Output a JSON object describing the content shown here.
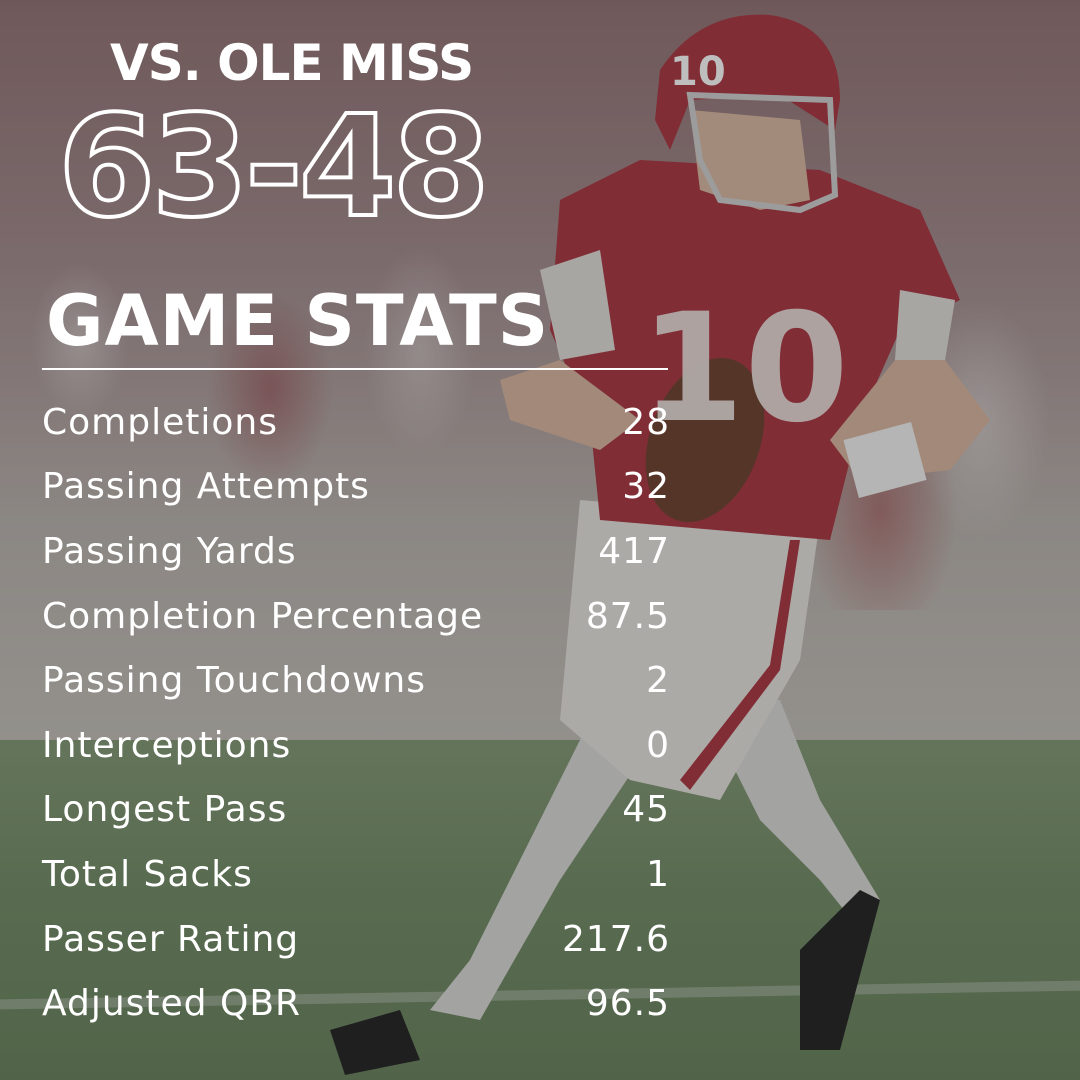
{
  "header": {
    "opponent": "VS. OLE MISS",
    "score": "63-48",
    "section_title": "GAME STATS"
  },
  "stats": [
    {
      "label": "Completions",
      "value": "28"
    },
    {
      "label": "Passing Attempts",
      "value": "32"
    },
    {
      "label": "Passing Yards",
      "value": "417"
    },
    {
      "label": "Completion Percentage",
      "value": "87.5"
    },
    {
      "label": "Passing Touchdowns",
      "value": "2"
    },
    {
      "label": "Interceptions",
      "value": "0"
    },
    {
      "label": "Longest Pass",
      "value": "45"
    },
    {
      "label": "Total Sacks",
      "value": "1"
    },
    {
      "label": "Passer Rating",
      "value": "217.6"
    },
    {
      "label": "Adjusted QBR",
      "value": "96.5"
    }
  ],
  "colors": {
    "jersey": "#a8303c",
    "text": "#ffffff",
    "field": "#6f8a63"
  },
  "photo": {
    "jersey_number": "10"
  }
}
